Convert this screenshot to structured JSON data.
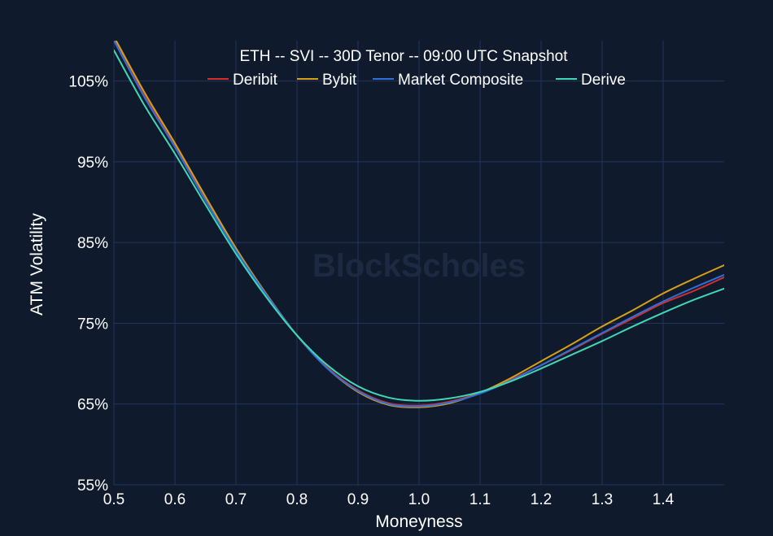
{
  "colors": {
    "background": "#101a2d",
    "grid": "#25345c",
    "text": "#ffffff",
    "watermark": "#1d2940"
  },
  "watermark": "BlockScholes",
  "chart_data": {
    "type": "line",
    "title": "ETH -- SVI -- 30D Tenor -- 09:00 UTC Snapshot",
    "xlabel": "Moneyness",
    "ylabel": "ATM Volatility",
    "xlim": [
      0.5,
      1.5
    ],
    "ylim": [
      55,
      110
    ],
    "x_ticks": [
      0.5,
      0.6,
      0.7,
      0.8,
      0.9,
      1.0,
      1.1,
      1.2,
      1.3,
      1.4
    ],
    "x_tick_labels": [
      "0.5",
      "0.6",
      "0.7",
      "0.8",
      "0.9",
      "1.0",
      "1.1",
      "1.2",
      "1.3",
      "1.4"
    ],
    "y_ticks": [
      55,
      65,
      75,
      85,
      95,
      105
    ],
    "y_tick_labels": [
      "55%",
      "65%",
      "75%",
      "85%",
      "95%",
      "105%"
    ],
    "grid": true,
    "legend_position": "top-center",
    "x": [
      0.5,
      0.55,
      0.6,
      0.65,
      0.7,
      0.75,
      0.8,
      0.85,
      0.9,
      0.95,
      1.0,
      1.05,
      1.1,
      1.15,
      1.2,
      1.25,
      1.3,
      1.35,
      1.4,
      1.45,
      1.5
    ],
    "series": [
      {
        "name": "Deribit",
        "color": "#d62d2d",
        "values": [
          110.2,
          103.2,
          97.0,
          90.4,
          84.2,
          78.6,
          73.5,
          69.5,
          66.7,
          65.1,
          64.8,
          65.3,
          66.4,
          68.0,
          69.8,
          71.7,
          73.7,
          75.6,
          77.5,
          79.0,
          80.7
        ]
      },
      {
        "name": "Bybit",
        "color": "#d4a017",
        "values": [
          110.5,
          103.6,
          97.3,
          90.7,
          84.3,
          78.6,
          73.5,
          69.4,
          66.5,
          64.9,
          64.6,
          65.1,
          66.4,
          68.2,
          70.3,
          72.4,
          74.6,
          76.6,
          78.7,
          80.5,
          82.2
        ]
      },
      {
        "name": "Market Composite",
        "color": "#2f6fdc",
        "values": [
          110.0,
          103.0,
          96.8,
          90.2,
          84.0,
          78.5,
          73.5,
          69.4,
          66.6,
          65.0,
          64.7,
          65.2,
          66.3,
          67.9,
          69.8,
          71.8,
          73.8,
          75.8,
          77.7,
          79.4,
          81.0
        ]
      },
      {
        "name": "Derive",
        "color": "#3fd8b4",
        "values": [
          108.8,
          102.0,
          96.0,
          89.7,
          83.6,
          78.2,
          73.5,
          69.8,
          67.2,
          65.8,
          65.4,
          65.7,
          66.5,
          67.8,
          69.4,
          71.1,
          72.8,
          74.6,
          76.3,
          77.9,
          79.3
        ]
      }
    ]
  }
}
